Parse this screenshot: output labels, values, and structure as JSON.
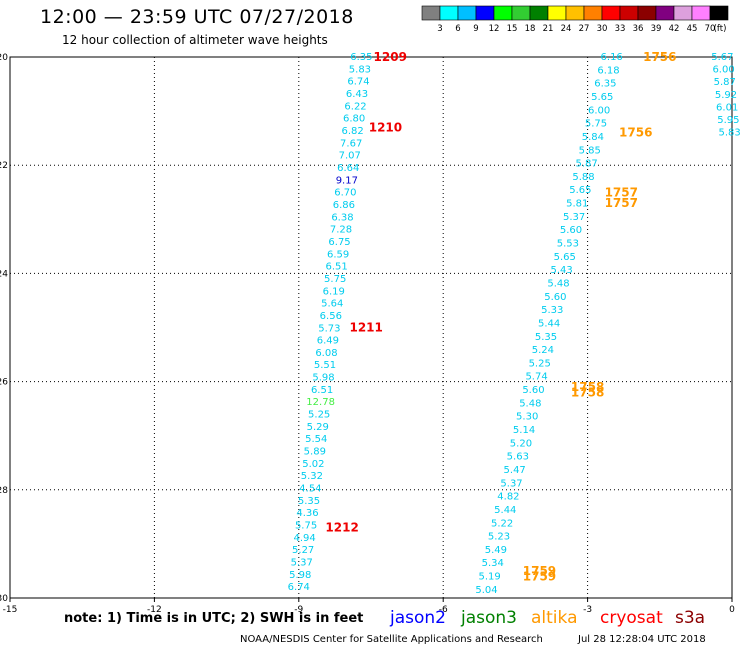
{
  "header": {
    "title": "12:00 — 23:59 UTC 07/27/2018",
    "subtitle": "12 hour collection of altimeter wave heights"
  },
  "colorbar": {
    "labels": [
      "3",
      "6",
      "9",
      "12",
      "15",
      "18",
      "21",
      "24",
      "27",
      "30",
      "33",
      "36",
      "39",
      "42",
      "45",
      "70"
    ],
    "unit": "(ft)",
    "colors": [
      "#808080",
      "#00ffff",
      "#00bfff",
      "#0000ff",
      "#00ff00",
      "#32cd32",
      "#008000",
      "#ffff00",
      "#ffc000",
      "#ff8000",
      "#ff0000",
      "#cc0000",
      "#8b0000",
      "#800080",
      "#dda0dd",
      "#ff80ff",
      "#000000"
    ]
  },
  "footnote": {
    "note": "note:  1) Time is in UTC;  2) SWH is in feet",
    "credit": "NOAA/NESDIS Center for Satellite Applications and Research",
    "timestamp": "Jul 28 12:28:04 UTC 2018"
  },
  "satellites": [
    {
      "name": "jason2",
      "color": "#0000ff"
    },
    {
      "name": "jason3",
      "color": "#008000"
    },
    {
      "name": "altika",
      "color": "#ff9900"
    },
    {
      "name": "cryosat",
      "color": "#ff0000"
    },
    {
      "name": "s3a",
      "color": "#8b0000"
    }
  ],
  "chart_data": {
    "type": "scatter",
    "xlim": [
      -15,
      0
    ],
    "ylim": [
      -30,
      -20
    ],
    "xticks": [
      "-15",
      "-12",
      "-9",
      "-6",
      "-3",
      "0"
    ],
    "yticks": [
      "-20",
      "-22",
      "-24",
      "-26",
      "-28",
      "-30"
    ],
    "grid": true,
    "tracks": [
      {
        "x0": -7.7,
        "y0": -20,
        "x1": -9,
        "y1": -29.8,
        "color": "#00ccee",
        "values": [
          "6.35",
          "5.83",
          "6.74",
          "6.43",
          "6.22",
          "6.80",
          "6.82",
          "7.67",
          "7.07",
          "6.64",
          "9.17",
          "6.70",
          "6.86",
          "6.38",
          "7.28",
          "6.75",
          "6.59",
          "6.51",
          "5.75",
          "6.19",
          "5.64",
          "6.56",
          "5.73",
          "6.49",
          "6.08",
          "5.51",
          "5.98",
          "6.51",
          "12.78",
          "5.25",
          "5.29",
          "5.54",
          "5.89",
          "5.02",
          "5.32",
          "4.54",
          "5.35",
          "4.36",
          "5.75",
          "4.94",
          "5.27",
          "5.37",
          "5.98",
          "6.74"
        ]
      },
      {
        "x0": -2.5,
        "y0": -20,
        "x1": -5.1,
        "y1": -29.85,
        "color": "#00ccee",
        "values": [
          "6.16",
          "6.18",
          "6.35",
          "5.65",
          "6.00",
          "5.75",
          "5.84",
          "5.85",
          "5.87",
          "5.88",
          "5.65",
          "5.81",
          "5.37",
          "5.60",
          "5.53",
          "5.65",
          "5.43",
          "5.48",
          "5.60",
          "5.33",
          "5.44",
          "5.35",
          "5.24",
          "5.25",
          "5.74",
          "5.60",
          "5.48",
          "5.30",
          "5.14",
          "5.20",
          "5.63",
          "5.47",
          "5.37",
          "4.82",
          "5.44",
          "5.22",
          "5.23",
          "5.49",
          "5.34",
          "5.19",
          "5.04"
        ]
      },
      {
        "x0": -0.2,
        "y0": -20,
        "x1": -0.05,
        "y1": -21.4,
        "color": "#00ccee",
        "values": [
          "5.67",
          "6.00",
          "5.87",
          "5.92",
          "6.01",
          "5.95",
          "5.83"
        ]
      }
    ],
    "passes": [
      {
        "id": "1209",
        "x": -7.1,
        "y": -20,
        "color": "#ee0000"
      },
      {
        "id": "1210",
        "x": -7.2,
        "y": -21.3,
        "color": "#ee0000"
      },
      {
        "id": "1211",
        "x": -7.6,
        "y": -25,
        "color": "#ee0000"
      },
      {
        "id": "1212",
        "x": -8.1,
        "y": -28.7,
        "color": "#ee0000"
      },
      {
        "id": "1756",
        "x": -1.5,
        "y": -20,
        "color": "#ff9900"
      },
      {
        "id": "1756",
        "x": -2.0,
        "y": -21.4,
        "color": "#ff9900"
      },
      {
        "id": "1757",
        "x": -2.3,
        "y": -22.5,
        "color": "#ff9900"
      },
      {
        "id": "1757",
        "x": -2.3,
        "y": -22.7,
        "color": "#ff9900"
      },
      {
        "id": "1758",
        "x": -3.0,
        "y": -26.1,
        "color": "#ff9900"
      },
      {
        "id": "1758",
        "x": -3.0,
        "y": -26.2,
        "color": "#ff9900"
      },
      {
        "id": "1759",
        "x": -4.0,
        "y": -29.5,
        "color": "#ff9900"
      },
      {
        "id": "1759",
        "x": -4.0,
        "y": -29.6,
        "color": "#ff9900"
      }
    ]
  }
}
